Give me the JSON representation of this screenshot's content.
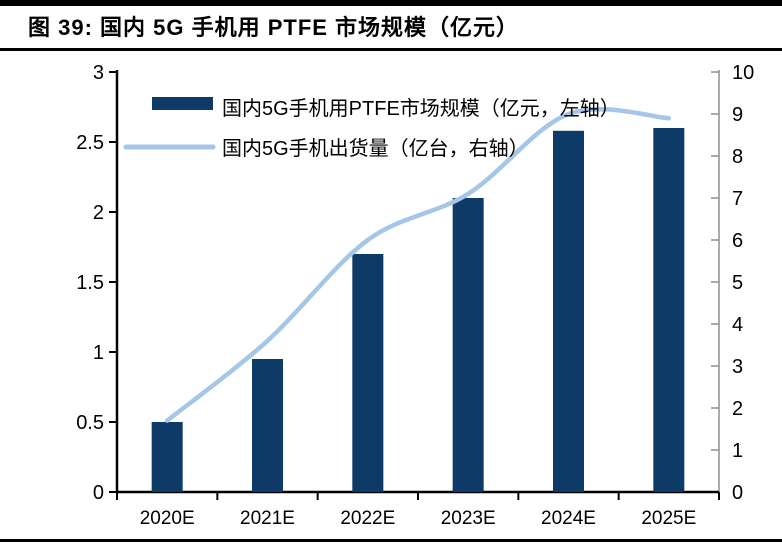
{
  "page": {
    "title": "图 39:  国内 5G 手机用 PTFE 市场规模（亿元）"
  },
  "chart_data": {
    "type": "combo",
    "categories": [
      "2020E",
      "2021E",
      "2022E",
      "2023E",
      "2024E",
      "2025E"
    ],
    "series": [
      {
        "name": "国内5G手机用PTFE市场规模（亿元，左轴）",
        "type": "bar",
        "axis": "left",
        "values": [
          0.5,
          0.95,
          1.7,
          2.1,
          2.58,
          2.6
        ],
        "color": "#0d3a67"
      },
      {
        "name": "国内5G手机出货量（亿台，右轴）",
        "type": "line",
        "axis": "right",
        "values": [
          1.7,
          3.6,
          6.0,
          7.1,
          9.0,
          8.9
        ],
        "color": "#a5c6e7"
      }
    ],
    "left_axis": {
      "min": 0,
      "max": 3,
      "tick_step": 0.5,
      "tick_labels": [
        "0",
        "0.5",
        "1",
        "1.5",
        "2",
        "2.5",
        "3"
      ]
    },
    "right_axis": {
      "min": 0,
      "max": 10,
      "tick_step": 1,
      "tick_labels": [
        "0",
        "1",
        "2",
        "3",
        "4",
        "5",
        "6",
        "7",
        "8",
        "9",
        "10"
      ]
    },
    "legend_position": "top-left",
    "grid": false
  },
  "colors": {
    "bar": "#0d3a67",
    "line": "#a5c6e7",
    "axis_black": "#000000",
    "axis_grey": "#8f8f8f",
    "text": "#000000",
    "rule": "#000000"
  }
}
